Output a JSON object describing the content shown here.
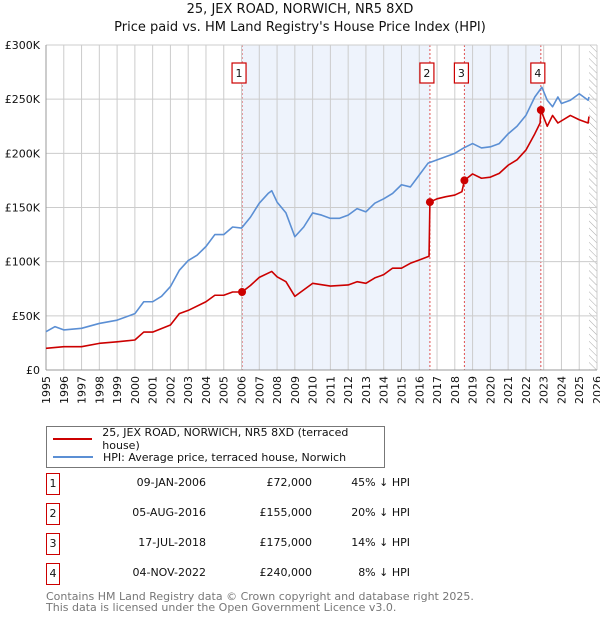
{
  "chart_data": {
    "type": "line",
    "title": "25, JEX ROAD, NORWICH, NR5 8XD",
    "subtitle": "Price paid vs. HM Land Registry's House Price Index (HPI)",
    "xlim": [
      1995,
      2026
    ],
    "ylim": [
      0,
      300000
    ],
    "x_ticks": [
      "1995",
      "1996",
      "1997",
      "1998",
      "1999",
      "2000",
      "2001",
      "2002",
      "2003",
      "2004",
      "2005",
      "2006",
      "2007",
      "2008",
      "2009",
      "2010",
      "2011",
      "2012",
      "2013",
      "2014",
      "2015",
      "2016",
      "2017",
      "2018",
      "2019",
      "2020",
      "2021",
      "2022",
      "2023",
      "2024",
      "2025",
      "2026"
    ],
    "y_ticks": [
      {
        "value": 0,
        "label": "£0"
      },
      {
        "value": 50000,
        "label": "£50K"
      },
      {
        "value": 100000,
        "label": "£100K"
      },
      {
        "value": 150000,
        "label": "£150K"
      },
      {
        "value": 200000,
        "label": "£200K"
      },
      {
        "value": 250000,
        "label": "£250K"
      },
      {
        "value": 300000,
        "label": "£300K"
      }
    ],
    "grid": true,
    "shaded_periods": [
      [
        2006.03,
        2016.6
      ],
      [
        2018.54,
        2022.84
      ]
    ],
    "forecast_hatch_from": 2025.55,
    "series": [
      {
        "name": "25, JEX ROAD, NORWICH, NR5 8XD (terraced house)",
        "color": "#cc0000",
        "points": [
          [
            1995,
            20000
          ],
          [
            1996,
            21500
          ],
          [
            1997,
            21500
          ],
          [
            1998,
            24600
          ],
          [
            1999,
            26000
          ],
          [
            2000,
            27700
          ],
          [
            2000.5,
            35000
          ],
          [
            2001,
            35000
          ],
          [
            2002,
            41500
          ],
          [
            2002.5,
            52000
          ],
          [
            2003,
            55000
          ],
          [
            2004,
            63000
          ],
          [
            2004.5,
            69000
          ],
          [
            2005,
            69000
          ],
          [
            2005.5,
            72000
          ],
          [
            2006.03,
            72000
          ],
          [
            2006.5,
            78000
          ],
          [
            2007,
            85500
          ],
          [
            2007.7,
            91000
          ],
          [
            2008,
            86000
          ],
          [
            2008.5,
            81500
          ],
          [
            2009,
            68000
          ],
          [
            2009.5,
            74000
          ],
          [
            2010,
            80000
          ],
          [
            2011,
            77500
          ],
          [
            2012,
            78500
          ],
          [
            2012.5,
            81500
          ],
          [
            2013,
            80000
          ],
          [
            2013.5,
            85000
          ],
          [
            2014,
            88000
          ],
          [
            2014.5,
            94000
          ],
          [
            2015,
            94000
          ],
          [
            2015.5,
            98500
          ],
          [
            2016,
            101500
          ],
          [
            2016.55,
            105000
          ],
          [
            2016.6,
            155000
          ],
          [
            2017,
            158000
          ],
          [
            2017.5,
            160000
          ],
          [
            2018,
            161500
          ],
          [
            2018.4,
            164600
          ],
          [
            2018.54,
            175000
          ],
          [
            2019,
            181000
          ],
          [
            2019.5,
            177000
          ],
          [
            2020,
            178000
          ],
          [
            2020.5,
            181500
          ],
          [
            2021,
            189000
          ],
          [
            2021.5,
            194000
          ],
          [
            2022,
            203000
          ],
          [
            2022.5,
            218000
          ],
          [
            2022.8,
            228000
          ],
          [
            2022.84,
            240000
          ],
          [
            2023.2,
            225000
          ],
          [
            2023.5,
            235000
          ],
          [
            2023.8,
            228000
          ],
          [
            2024.5,
            235000
          ],
          [
            2025,
            231000
          ],
          [
            2025.5,
            228000
          ],
          [
            2025.55,
            234000
          ]
        ]
      },
      {
        "name": "HPI: Average price, terraced house, Norwich",
        "color": "#5b8fd4",
        "points": [
          [
            1995,
            35400
          ],
          [
            1995.5,
            40000
          ],
          [
            1996,
            37000
          ],
          [
            1997,
            38500
          ],
          [
            1998,
            43000
          ],
          [
            1999,
            46000
          ],
          [
            2000,
            52000
          ],
          [
            2000.5,
            63000
          ],
          [
            2001,
            63000
          ],
          [
            2001.5,
            68000
          ],
          [
            2002,
            77000
          ],
          [
            2002.5,
            92000
          ],
          [
            2003,
            101000
          ],
          [
            2003.5,
            106000
          ],
          [
            2004,
            114000
          ],
          [
            2004.5,
            125000
          ],
          [
            2005,
            125000
          ],
          [
            2005.5,
            132000
          ],
          [
            2006,
            131000
          ],
          [
            2006.5,
            141000
          ],
          [
            2007,
            154000
          ],
          [
            2007.5,
            163000
          ],
          [
            2007.7,
            165500
          ],
          [
            2008,
            155000
          ],
          [
            2008.5,
            145000
          ],
          [
            2009,
            123000
          ],
          [
            2009.5,
            132000
          ],
          [
            2010,
            145000
          ],
          [
            2010.5,
            143000
          ],
          [
            2011,
            140000
          ],
          [
            2011.5,
            140000
          ],
          [
            2012,
            143000
          ],
          [
            2012.5,
            149000
          ],
          [
            2013,
            146000
          ],
          [
            2013.5,
            154000
          ],
          [
            2014,
            158000
          ],
          [
            2014.5,
            163000
          ],
          [
            2015,
            171000
          ],
          [
            2015.5,
            169000
          ],
          [
            2016,
            180000
          ],
          [
            2016.5,
            191000
          ],
          [
            2017,
            194000
          ],
          [
            2017.5,
            197000
          ],
          [
            2018,
            200000
          ],
          [
            2018.5,
            205000
          ],
          [
            2019,
            209000
          ],
          [
            2019.5,
            205000
          ],
          [
            2020,
            206000
          ],
          [
            2020.5,
            209000
          ],
          [
            2021,
            218000
          ],
          [
            2021.5,
            225000
          ],
          [
            2022,
            235000
          ],
          [
            2022.5,
            252000
          ],
          [
            2022.9,
            261000
          ],
          [
            2023.2,
            249000
          ],
          [
            2023.5,
            243000
          ],
          [
            2023.8,
            252000
          ],
          [
            2024,
            246000
          ],
          [
            2024.5,
            249000
          ],
          [
            2025,
            255000
          ],
          [
            2025.5,
            249000
          ],
          [
            2025.55,
            252000
          ]
        ]
      }
    ],
    "sales": [
      {
        "n": "1",
        "x": 2006.03,
        "y": 72000
      },
      {
        "n": "2",
        "x": 2016.6,
        "y": 155000
      },
      {
        "n": "3",
        "x": 2018.54,
        "y": 175000
      },
      {
        "n": "4",
        "x": 2022.84,
        "y": 240000
      }
    ],
    "legend": "bottom"
  },
  "legend": {
    "property": "25, JEX ROAD, NORWICH, NR5 8XD (terraced house)",
    "hpi": "HPI: Average price, terraced house, Norwich"
  },
  "sales_table": [
    {
      "n": "1",
      "date": "09-JAN-2006",
      "price": "£72,000",
      "hpi": "45% ↓ HPI"
    },
    {
      "n": "2",
      "date": "05-AUG-2016",
      "price": "£155,000",
      "hpi": "20% ↓ HPI"
    },
    {
      "n": "3",
      "date": "17-JUL-2018",
      "price": "£175,000",
      "hpi": "14% ↓ HPI"
    },
    {
      "n": "4",
      "date": "04-NOV-2022",
      "price": "£240,000",
      "hpi": "8% ↓ HPI"
    }
  ],
  "footer": {
    "line1": "Contains HM Land Registry data © Crown copyright and database right 2025.",
    "line2": "This data is licensed under the Open Government Licence v3.0."
  },
  "colors": {
    "property": "#cc0000",
    "hpi": "#5b8fd4",
    "shade": "#eef3fc"
  }
}
